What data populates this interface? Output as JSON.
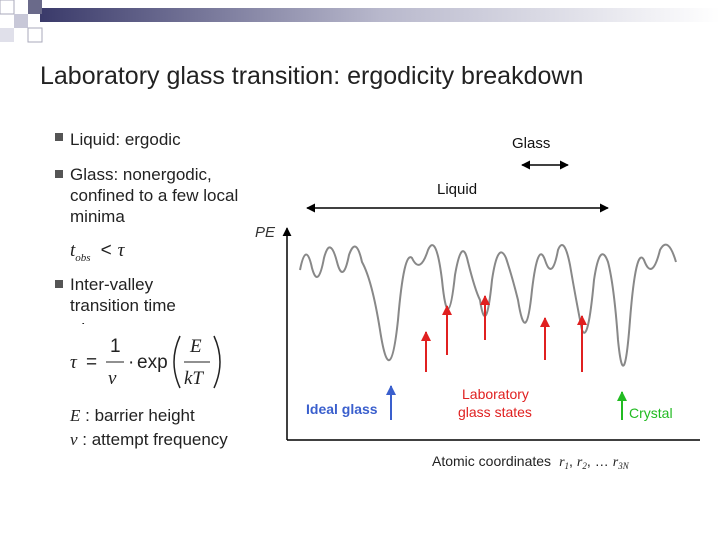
{
  "title": "Laboratory glass transition: ergodicity breakdown",
  "bullets": [
    "Liquid: ergodic",
    "Glass: nonergodic, confined to a few local minima",
    "Inter-valley transition time"
  ],
  "condition": {
    "t": "t",
    "sub": "obs",
    "op": "<",
    "tau": "τ"
  },
  "tau_symbol": ":",
  "formula": {
    "lhs": "τ",
    "eq": "=",
    "num": "1",
    "den": "ν",
    "dot": "·",
    "func": "exp",
    "e_num": "E",
    "e_den": "kT"
  },
  "definitions": [
    {
      "symbol": "E",
      "text": ": barrier height"
    },
    {
      "symbol": "ν",
      "text": ": attempt frequency"
    }
  ],
  "figure": {
    "glass": "Glass",
    "liquid": "Liquid",
    "y_axis": "PE",
    "ideal_glass": "Ideal glass",
    "lab_states": [
      "Laboratory",
      "glass states"
    ],
    "crystal": "Crystal",
    "x_axis": {
      "label": "Atomic coordinates",
      "coords": [
        {
          "s": "r",
          "sub": "1",
          "sep": ","
        },
        {
          "s": "r",
          "sub": "2",
          "sep": ","
        },
        {
          "s": "…",
          "sub": "",
          "sep": ""
        },
        {
          "s": "r",
          "sub": "3N",
          "sep": ""
        }
      ]
    }
  }
}
